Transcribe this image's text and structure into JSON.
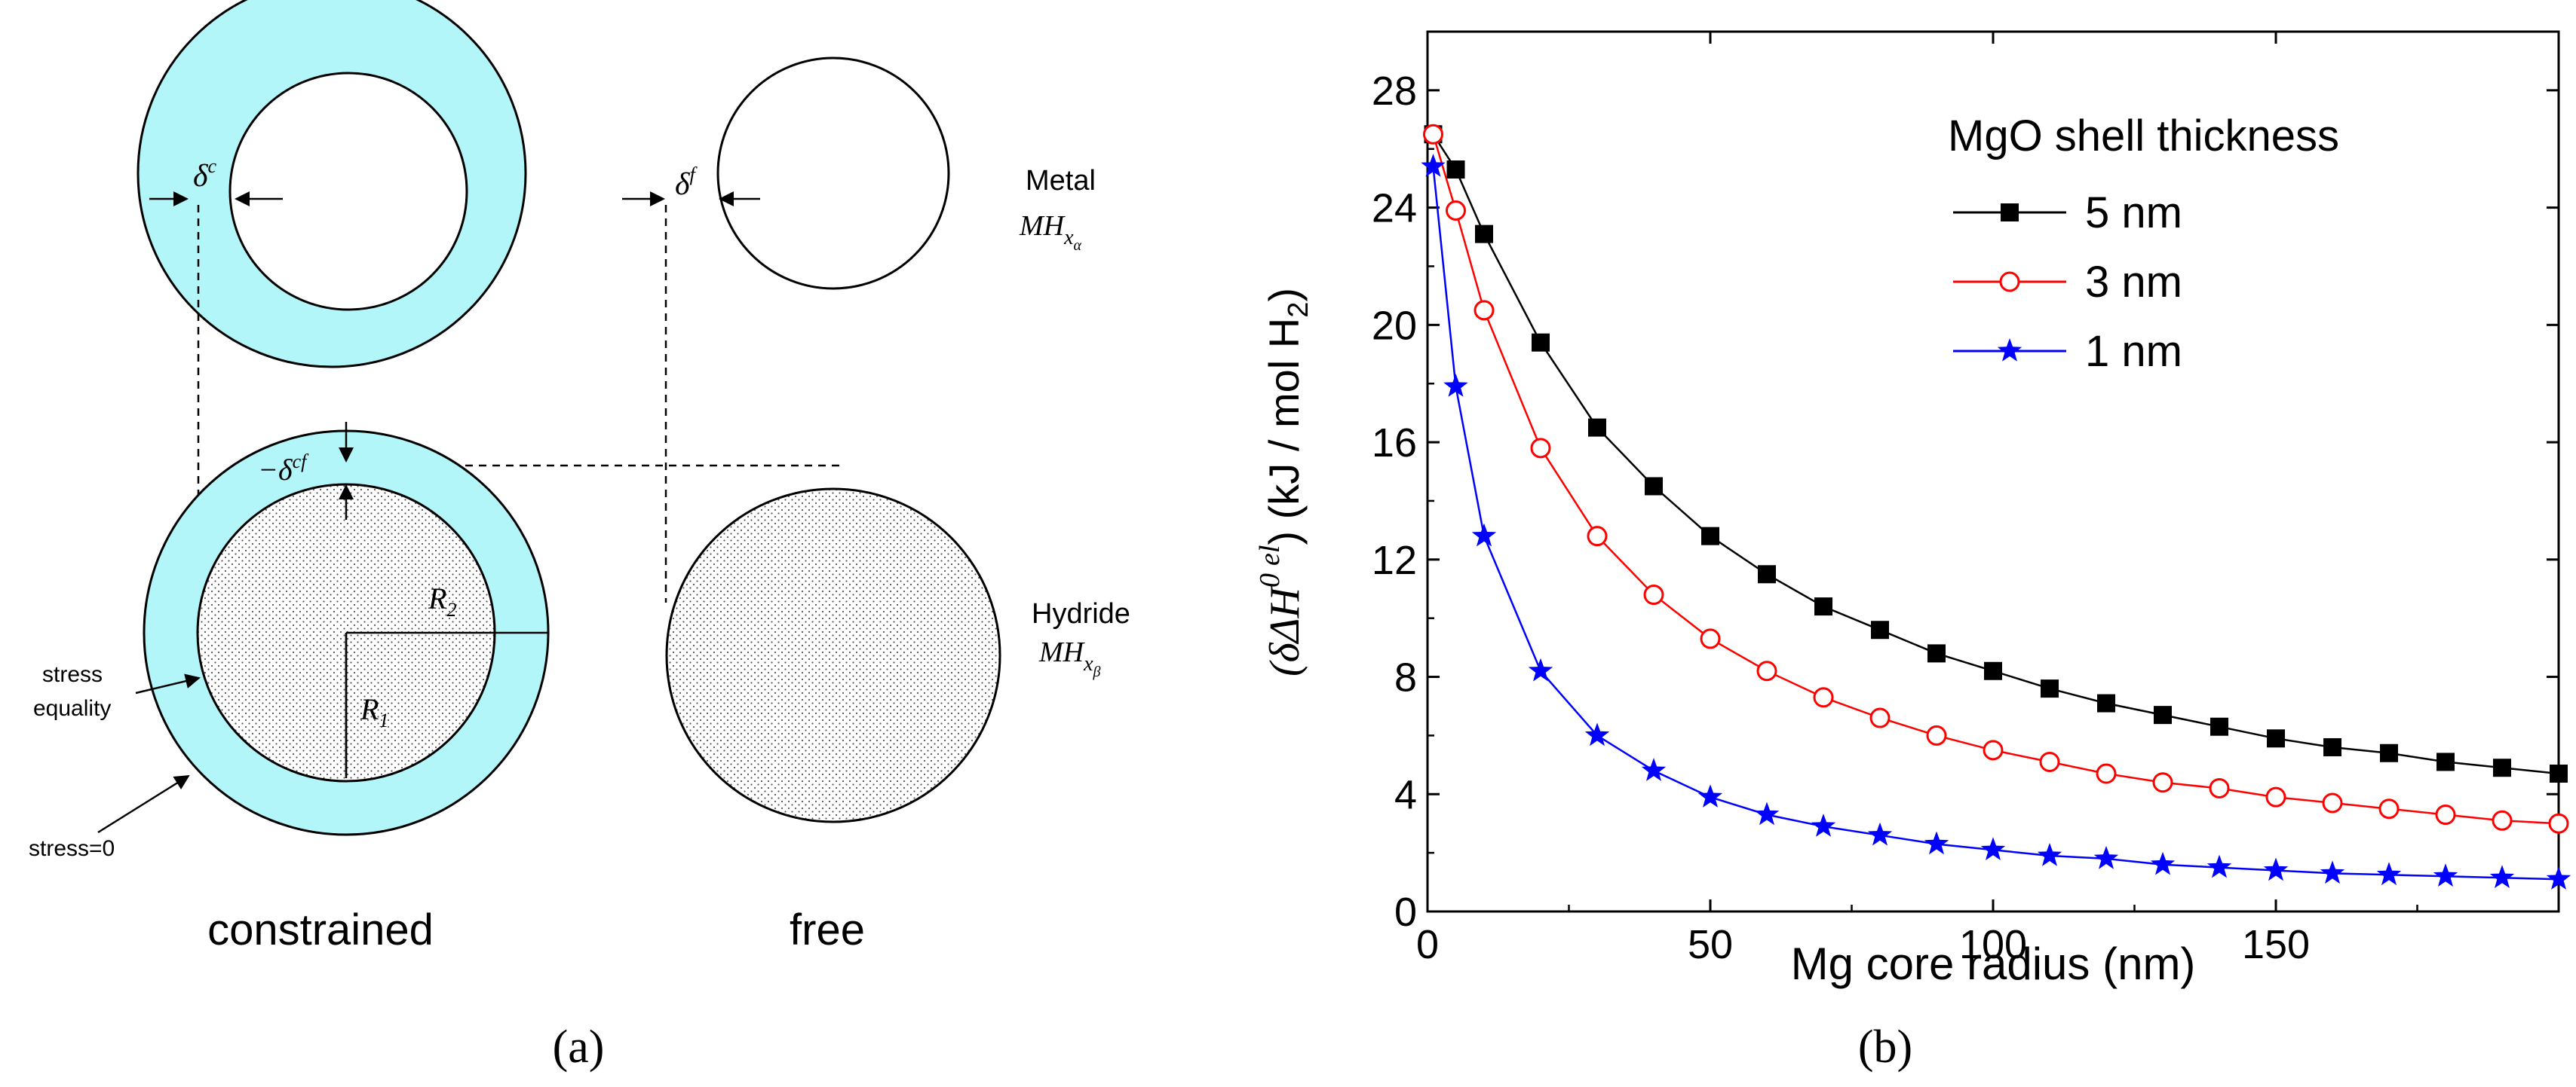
{
  "panel_a": {
    "caption": "(a)",
    "labels": {
      "delta_c": "δ",
      "delta_c_sup": "c",
      "delta_f": "δ",
      "delta_f_sup": "f",
      "delta_cf": "−δ",
      "delta_cf_sup": "cf",
      "metal": "Metal",
      "metal_formula": "MH",
      "metal_sub": "x",
      "metal_subsub": "α",
      "hydride": "Hydride",
      "hydride_formula": "MH",
      "hydride_sub": "x",
      "hydride_subsub": "β",
      "r2": "R",
      "r2_sub": "2",
      "r1": "R",
      "r1_sub": "1",
      "stress_equality_line1": "stress",
      "stress_equality_line2": "equality",
      "stress_zero": "stress=0",
      "constrained": "constrained",
      "free": "free"
    },
    "colors": {
      "shell": "#b3f6fa",
      "stroke": "#000000"
    }
  },
  "panel_b": {
    "caption": "(b)",
    "y_axis_label_prefix": "(δΔH",
    "y_axis_label_sup": "0",
    "y_axis_label_sup2": "el",
    "y_axis_label_suffix": ") (kJ / mol H",
    "y_axis_label_sub": "2",
    "y_axis_label_close": ")"
  },
  "chart_data": {
    "type": "line",
    "title": "",
    "xlabel": "Mg core radius (nm)",
    "ylabel": "(δΔH^0 el) (kJ / mol H2)",
    "xlim": [
      0,
      200
    ],
    "ylim": [
      0,
      30
    ],
    "x_ticks": [
      0,
      50,
      100,
      150
    ],
    "y_ticks": [
      0,
      4,
      8,
      12,
      16,
      20,
      24,
      28
    ],
    "legend_title": "MgO shell thickness",
    "legend_position": "top-right",
    "series": [
      {
        "name": "5 nm",
        "color": "#000000",
        "marker": "square-filled",
        "x": [
          1,
          5,
          10,
          20,
          30,
          40,
          50,
          60,
          70,
          80,
          90,
          100,
          110,
          120,
          130,
          140,
          150,
          160,
          170,
          180,
          190,
          200
        ],
        "values": [
          26.5,
          25.3,
          23.1,
          19.4,
          16.5,
          14.5,
          12.8,
          11.5,
          10.4,
          9.6,
          8.8,
          8.2,
          7.6,
          7.1,
          6.7,
          6.3,
          5.9,
          5.6,
          5.4,
          5.1,
          4.9,
          4.7
        ]
      },
      {
        "name": "3 nm",
        "color": "#ff0000",
        "marker": "circle-open",
        "x": [
          1,
          5,
          10,
          20,
          30,
          40,
          50,
          60,
          70,
          80,
          90,
          100,
          110,
          120,
          130,
          140,
          150,
          160,
          170,
          180,
          190,
          200
        ],
        "values": [
          26.5,
          23.9,
          20.5,
          15.8,
          12.8,
          10.8,
          9.3,
          8.2,
          7.3,
          6.6,
          6.0,
          5.5,
          5.1,
          4.7,
          4.4,
          4.2,
          3.9,
          3.7,
          3.5,
          3.3,
          3.1,
          3.0
        ]
      },
      {
        "name": "1 nm",
        "color": "#0000ff",
        "marker": "star-filled",
        "x": [
          1,
          5,
          10,
          20,
          30,
          40,
          50,
          60,
          70,
          80,
          90,
          100,
          110,
          120,
          130,
          140,
          150,
          160,
          170,
          180,
          190,
          200
        ],
        "values": [
          25.4,
          17.9,
          12.8,
          8.2,
          6.0,
          4.8,
          3.9,
          3.3,
          2.9,
          2.6,
          2.3,
          2.1,
          1.9,
          1.8,
          1.6,
          1.5,
          1.4,
          1.3,
          1.25,
          1.2,
          1.15,
          1.1
        ]
      }
    ]
  }
}
